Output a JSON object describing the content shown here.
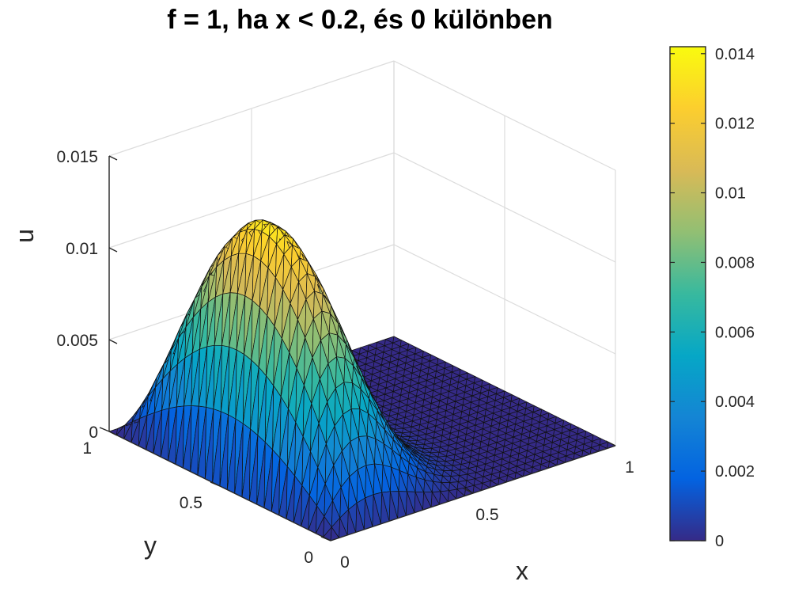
{
  "chart_data": {
    "type": "surface",
    "title": "f = 1, ha x < 0.2, és 0 különben",
    "xlabel": "x",
    "ylabel": "y",
    "zlabel": "u",
    "xlim": [
      0,
      1
    ],
    "ylim": [
      0,
      1
    ],
    "zlim": [
      0,
      0.015
    ],
    "xticks": [
      "0",
      "0.5",
      "1"
    ],
    "yticks": [
      "0",
      "0.5",
      "1"
    ],
    "zticks": [
      "0",
      "0.005",
      "0.01",
      "0.015"
    ],
    "grid": true,
    "peak": {
      "x": 0.2,
      "y": 0.5,
      "u": 0.0142
    },
    "colorbar": {
      "colormap": "parula",
      "limits": [
        0,
        0.0142
      ],
      "ticks": [
        "0",
        "0.002",
        "0.004",
        "0.006",
        "0.008",
        "0.01",
        "0.012",
        "0.014"
      ],
      "position": "right",
      "colors": [
        "#352a87",
        "#0363e1",
        "#1485d4",
        "#06a7c6",
        "#38b99e",
        "#92bf73",
        "#d9ba56",
        "#fcce2e",
        "#f9fb0e"
      ]
    }
  }
}
